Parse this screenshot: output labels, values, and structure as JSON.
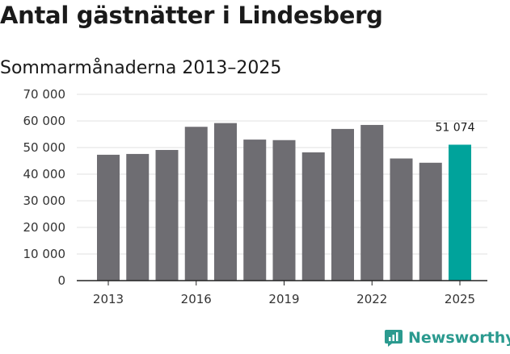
{
  "title": "Antal gästnätter i Lindesberg",
  "subtitle": "Sommarmånaderna 2013–2025",
  "brand": {
    "name": "Newsworthy",
    "color": "#2b9a8f"
  },
  "colors": {
    "bar": "#6e6d72",
    "highlight": "#00a39b",
    "grid": "#e0e0e0",
    "axis": "#222222"
  },
  "chart_data": {
    "type": "bar",
    "categories": [
      "2013",
      "2014",
      "2015",
      "2016",
      "2017",
      "2018",
      "2019",
      "2020",
      "2021",
      "2022",
      "2023",
      "2024",
      "2025"
    ],
    "values": [
      47300,
      47600,
      49100,
      57800,
      59200,
      53000,
      52800,
      48200,
      57000,
      58500,
      45900,
      44300,
      51074
    ],
    "highlight_index": 12,
    "data_labels": [
      {
        "index": 12,
        "text": "51 074"
      }
    ],
    "ylim": [
      0,
      70000
    ],
    "yticks": [
      0,
      10000,
      20000,
      30000,
      40000,
      50000,
      60000,
      70000
    ],
    "ytick_labels": [
      "0",
      "10 000",
      "20 000",
      "30 000",
      "40 000",
      "50 000",
      "60 000",
      "70 000"
    ],
    "xtick_labels": [
      "2013",
      "2016",
      "2019",
      "2022",
      "2025"
    ],
    "grid": true
  }
}
